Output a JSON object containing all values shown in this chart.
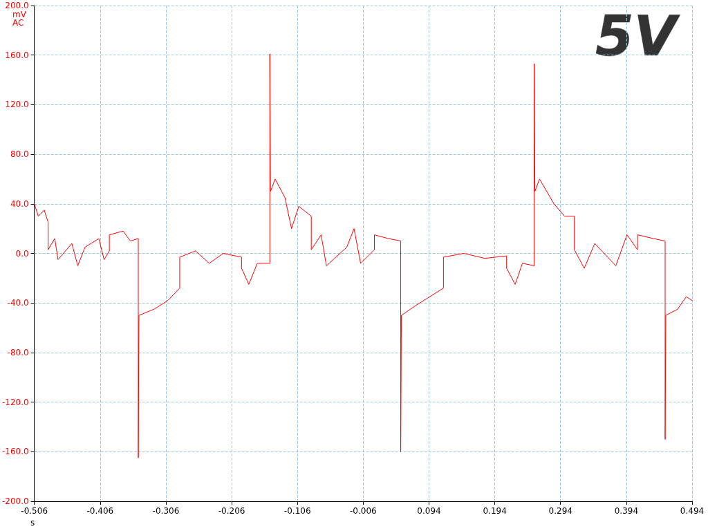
{
  "chart_data": {
    "type": "line",
    "xlabel": "s",
    "ylabel": "mV AC",
    "annotations": [
      "5V"
    ],
    "xlim": [
      -0.506,
      0.494
    ],
    "xticks": [
      -0.506,
      -0.406,
      -0.306,
      -0.206,
      -0.106,
      -0.006,
      0.094,
      0.194,
      0.294,
      0.394,
      0.494
    ],
    "ylim": [
      -200,
      200
    ],
    "yticks": [
      {
        "value": -200,
        "label": "-200.0"
      },
      {
        "value": -160,
        "label": "-160.0"
      },
      {
        "value": -120,
        "label": "-120.0"
      },
      {
        "value": -80,
        "label": "-80.0"
      },
      {
        "value": -40,
        "label": "-40.0"
      },
      {
        "value": 0,
        "label": "0.0"
      },
      {
        "value": 40,
        "label": "40.0"
      },
      {
        "value": 80,
        "label": "80.0"
      },
      {
        "value": 120,
        "label": "120.0"
      },
      {
        "value": 160,
        "label": "160.0"
      },
      {
        "value": 200,
        "label": "200.0"
      }
    ],
    "grid": true,
    "marker": "none",
    "line_style": "solid",
    "x": [
      -0.506,
      -0.5,
      -0.491,
      -0.485,
      -0.485,
      -0.475,
      -0.47,
      -0.449,
      -0.44,
      -0.429,
      -0.408,
      -0.4,
      -0.392,
      -0.392,
      -0.371,
      -0.36,
      -0.348,
      -0.348,
      -0.347,
      -0.324,
      -0.303,
      -0.285,
      -0.285,
      -0.261,
      -0.24,
      -0.219,
      -0.191,
      -0.191,
      -0.18,
      -0.167,
      -0.148,
      -0.148,
      -0.147,
      -0.14,
      -0.125,
      -0.115,
      -0.104,
      -0.085,
      -0.085,
      -0.07,
      -0.062,
      -0.031,
      -0.02,
      -0.01,
      0.011,
      0.011,
      0.032,
      0.051,
      0.051,
      0.052,
      0.074,
      0.095,
      0.116,
      0.116,
      0.147,
      0.179,
      0.212,
      0.212,
      0.225,
      0.236,
      0.254,
      0.254,
      0.255,
      0.262,
      0.284,
      0.3,
      0.315,
      0.315,
      0.33,
      0.346,
      0.378,
      0.395,
      0.411,
      0.411,
      0.435,
      0.453,
      0.453,
      0.454,
      0.472,
      0.485,
      0.494
    ],
    "series": [
      {
        "color": "#ff0000",
        "values": [
          40,
          30,
          35,
          25,
          3,
          12,
          -5,
          8,
          -10,
          5,
          12,
          -5,
          2,
          15,
          18,
          10,
          12,
          -165,
          -50,
          -45,
          -38,
          -28,
          -3,
          2,
          -8,
          0,
          -3,
          -12,
          -25,
          -8,
          -8,
          161,
          50,
          60,
          45,
          20,
          38,
          30,
          3,
          15,
          -10,
          5,
          20,
          -8,
          3,
          15,
          12,
          10,
          -160,
          -50,
          -42,
          -35,
          -28,
          -3,
          0,
          -4,
          -2,
          -12,
          -25,
          -8,
          -10,
          153,
          50,
          60,
          40,
          30,
          30,
          3,
          -12,
          8,
          -10,
          15,
          3,
          15,
          12,
          10,
          -150,
          -50,
          -45,
          -35,
          -38
        ]
      }
    ]
  }
}
